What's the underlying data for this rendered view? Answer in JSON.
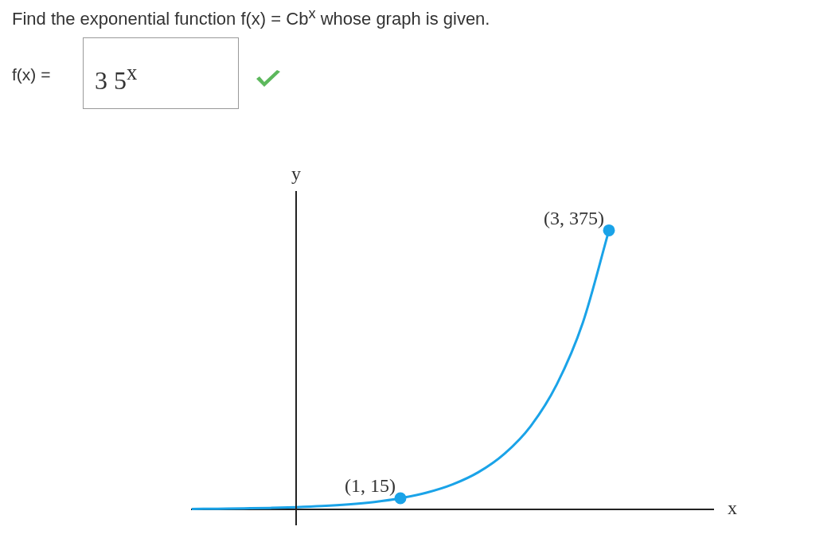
{
  "chart_data": {
    "type": "line",
    "title": "Find the exponential function f(x) = Cb$^{x}$ whose graph is given.",
    "annotations": [
      "f(x) =",
      "3 5$^{x}$"
    ],
    "xlabel": "x",
    "ylabel": "y",
    "tick_labels": false,
    "grid": false,
    "legend": false,
    "categories": [
      null,
      null,
      null,
      null,
      null,
      null,
      null,
      null,
      null,
      null,
      null,
      null,
      null,
      null,
      null,
      null,
      null,
      null,
      null,
      null,
      null
    ],
    "series": [
      {
        "color": "#1aa3e8",
        "values": [
          0.6,
          0.9,
          1.34,
          2.0,
          3,
          4.49,
          6.7,
          10.0,
          15,
          22.4,
          33.5,
          50.1,
          75,
          112,
          168,
          251,
          375,
          null,
          null,
          null,
          null
        ],
        "value_labels": [
          null,
          null,
          null,
          null,
          null,
          null,
          null,
          null,
          "(1, 15)",
          null,
          null,
          null,
          null,
          null,
          null,
          null,
          "(3, 375)",
          null,
          null,
          null,
          null
        ]
      }
    ]
  }
}
